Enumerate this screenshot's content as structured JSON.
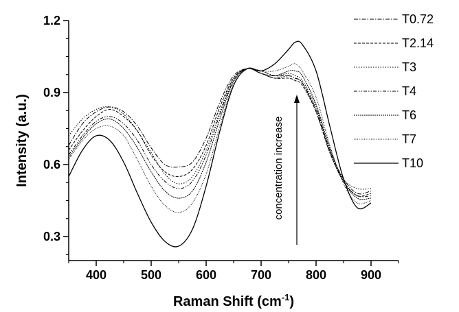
{
  "chart_data": {
    "type": "line",
    "xlabel": "Raman Shift (cm",
    "xlabel_sup": "-1",
    "xlabel_close": ")",
    "ylabel": "Intensity (a.u.)",
    "xlim": [
      350,
      950
    ],
    "ylim": [
      0.2,
      1.2
    ],
    "xticks": [
      400,
      500,
      600,
      700,
      800,
      900
    ],
    "yticks": [
      0.3,
      0.6,
      0.9,
      1.2
    ],
    "ytick_labels": [
      "0.3",
      "0.6",
      "0.9",
      "1.2"
    ],
    "legend_position": "right",
    "annotation": "concentration increase",
    "x": [
      350,
      375,
      400,
      425,
      450,
      475,
      500,
      525,
      550,
      575,
      600,
      625,
      650,
      675,
      700,
      725,
      750,
      762,
      775,
      800,
      825,
      850,
      875,
      900
    ],
    "series": [
      {
        "name": "T0.72",
        "dash": "6,2,1.5,2",
        "values": [
          0.68,
          0.77,
          0.82,
          0.84,
          0.82,
          0.76,
          0.67,
          0.6,
          0.59,
          0.61,
          0.71,
          0.86,
          0.97,
          1.0,
          0.99,
          0.97,
          0.97,
          0.96,
          0.94,
          0.83,
          0.66,
          0.54,
          0.48,
          0.49
        ]
      },
      {
        "name": "T2.14",
        "dash": "4,2",
        "values": [
          0.66,
          0.74,
          0.8,
          0.83,
          0.8,
          0.74,
          0.64,
          0.57,
          0.55,
          0.58,
          0.68,
          0.84,
          0.96,
          1.0,
          0.98,
          0.96,
          0.96,
          0.95,
          0.93,
          0.82,
          0.65,
          0.53,
          0.47,
          0.48
        ]
      },
      {
        "name": "T3",
        "dash": "1.5,2",
        "values": [
          0.72,
          0.79,
          0.83,
          0.84,
          0.81,
          0.74,
          0.65,
          0.56,
          0.52,
          0.55,
          0.66,
          0.82,
          0.96,
          1.0,
          0.98,
          0.97,
          0.98,
          0.97,
          0.95,
          0.84,
          0.66,
          0.54,
          0.5,
          0.5
        ]
      },
      {
        "name": "T4",
        "dash": "5,2,1.5,2,1.5,2",
        "values": [
          0.64,
          0.72,
          0.78,
          0.8,
          0.77,
          0.7,
          0.6,
          0.53,
          0.5,
          0.53,
          0.64,
          0.81,
          0.95,
          1.0,
          0.98,
          0.96,
          0.97,
          0.96,
          0.94,
          0.82,
          0.65,
          0.53,
          0.47,
          0.47
        ]
      },
      {
        "name": "T6",
        "dash": "2,1",
        "values": [
          0.63,
          0.71,
          0.77,
          0.79,
          0.75,
          0.67,
          0.57,
          0.49,
          0.46,
          0.49,
          0.61,
          0.79,
          0.95,
          1.0,
          0.98,
          0.97,
          0.99,
          0.99,
          0.97,
          0.85,
          0.67,
          0.53,
          0.46,
          0.46
        ]
      },
      {
        "name": "T7",
        "dash": "1,1.5",
        "values": [
          0.62,
          0.7,
          0.75,
          0.76,
          0.72,
          0.62,
          0.51,
          0.43,
          0.4,
          0.44,
          0.56,
          0.76,
          0.94,
          1.0,
          0.99,
          0.99,
          1.01,
          1.02,
          0.99,
          0.88,
          0.68,
          0.52,
          0.44,
          0.45
        ]
      },
      {
        "name": "T10",
        "dash": "",
        "values": [
          0.55,
          0.66,
          0.72,
          0.7,
          0.61,
          0.48,
          0.36,
          0.28,
          0.26,
          0.33,
          0.51,
          0.74,
          0.93,
          1.0,
          0.99,
          1.02,
          1.08,
          1.11,
          1.1,
          0.99,
          0.76,
          0.54,
          0.42,
          0.44
        ]
      }
    ]
  }
}
